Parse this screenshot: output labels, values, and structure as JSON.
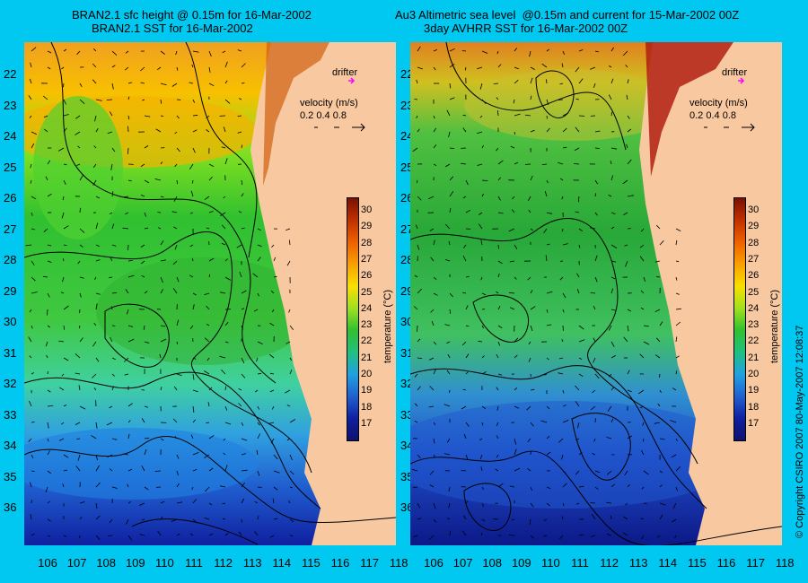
{
  "left_panel": {
    "title_line1": "BRAN2.1 sfc height @ 0.15m for 16-Mar-2002",
    "title_line2": "BRAN2.1 SST for 16-Mar-2002"
  },
  "right_panel": {
    "title_line1": "Au3 Altimetric sea level  @0.15m and current for 15-Mar-2002 00Z",
    "title_line2": "3day AVHRR SST for 16-Mar-2002 00Z"
  },
  "legend": {
    "drifter_label": "drifter",
    "velocity_label": "velocity (m/s)",
    "velocity_scale": "0.2 0.4 0.8",
    "colorbar_title": "temperature (°C)",
    "colorbar_ticks": [
      "30",
      "29",
      "28",
      "27",
      "26",
      "25",
      "24",
      "23",
      "22",
      "21",
      "20",
      "19",
      "18",
      "17"
    ],
    "drifter_color": "#ff00ff"
  },
  "axes": {
    "latitudes": [
      "22",
      "23",
      "24",
      "25",
      "26",
      "27",
      "28",
      "29",
      "30",
      "31",
      "32",
      "33",
      "34",
      "35",
      "36"
    ],
    "longitudes": [
      "106",
      "107",
      "108",
      "109",
      "110",
      "111",
      "112",
      "113",
      "114",
      "115",
      "116",
      "117",
      "118"
    ]
  },
  "copyright": "© Copyright CSIRO 2007   80-May-2007 12:08:37",
  "colors": {
    "background": "#00c8f0",
    "land": "#f8c8a0",
    "warm": "#f0a000",
    "green": "#40c840",
    "blue": "#2050d0"
  }
}
